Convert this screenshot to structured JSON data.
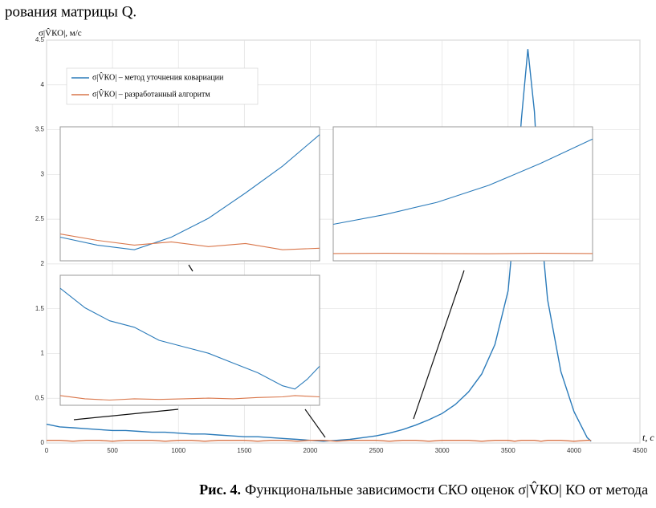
{
  "header": {
    "text": "рования матрицы Q."
  },
  "caption": {
    "label": "Рис. 4.",
    "text": "Функциональные зависимости СКО оценок σ|V̂КО| КО от метода"
  },
  "chart_data": [
    {
      "type": "line",
      "ylabel": "σ|V̂КО|, м/с",
      "xlabel": "t, с",
      "x": [
        0,
        100,
        200,
        300,
        400,
        500,
        600,
        700,
        800,
        900,
        1000,
        1100,
        1200,
        1300,
        1400,
        1500,
        1600,
        1700,
        1800,
        1900,
        2000,
        2100,
        2200,
        2300,
        2400,
        2500,
        2600,
        2700,
        2800,
        2900,
        3000,
        3100,
        3200,
        3300,
        3400,
        3500,
        3550,
        3600,
        3650,
        3700,
        3750,
        3800,
        3900,
        4000,
        4100,
        4130
      ],
      "series": [
        {
          "name": "σ|V̂КО| – метод уточнения ковариации",
          "color": "#2b7bba",
          "values": [
            0.21,
            0.18,
            0.17,
            0.16,
            0.15,
            0.14,
            0.14,
            0.13,
            0.12,
            0.12,
            0.11,
            0.1,
            0.1,
            0.09,
            0.08,
            0.07,
            0.07,
            0.06,
            0.05,
            0.04,
            0.03,
            0.02,
            0.03,
            0.04,
            0.06,
            0.08,
            0.11,
            0.15,
            0.2,
            0.26,
            0.33,
            0.43,
            0.57,
            0.77,
            1.1,
            1.7,
            2.5,
            3.6,
            4.4,
            3.7,
            2.4,
            1.6,
            0.8,
            0.35,
            0.06,
            0.02
          ]
        },
        {
          "name": "σ|V̂КО| – разработанный алгоритм",
          "color": "#d9764a",
          "values": [
            0.03,
            0.03,
            0.02,
            0.03,
            0.03,
            0.02,
            0.03,
            0.03,
            0.03,
            0.02,
            0.03,
            0.03,
            0.02,
            0.03,
            0.03,
            0.03,
            0.02,
            0.03,
            0.03,
            0.02,
            0.03,
            0.03,
            0.02,
            0.03,
            0.03,
            0.03,
            0.02,
            0.03,
            0.03,
            0.02,
            0.03,
            0.03,
            0.03,
            0.02,
            0.03,
            0.03,
            0.02,
            0.03,
            0.03,
            0.03,
            0.02,
            0.03,
            0.03,
            0.02,
            0.03,
            0.03
          ]
        }
      ],
      "xlim": [
        0,
        4500
      ],
      "ylim": [
        0,
        4.5
      ],
      "xticks": [
        0,
        500,
        1000,
        1500,
        2000,
        2500,
        3000,
        3500,
        4000,
        4500
      ],
      "yticks": [
        0,
        0.5,
        1,
        1.5,
        2,
        2.5,
        3,
        3.5,
        4,
        4.5
      ],
      "grid": true,
      "legend": "upper left"
    },
    {
      "type": "line",
      "x": [
        2000,
        2100,
        2200,
        2300,
        2400,
        2500,
        2600,
        2700
      ],
      "series": [
        {
          "color": "#2b7bba",
          "values": [
            0.03,
            0.025,
            0.022,
            0.03,
            0.042,
            0.058,
            0.075,
            0.095
          ]
        },
        {
          "color": "#d9764a",
          "values": [
            0.032,
            0.028,
            0.025,
            0.027,
            0.024,
            0.026,
            0.022,
            0.023
          ]
        }
      ],
      "xlim": [
        2000,
        2700
      ],
      "ylim": [
        0.015,
        0.1
      ]
    },
    {
      "type": "line",
      "x": [
        2700,
        2800,
        2900,
        3000,
        3100,
        3200
      ],
      "series": [
        {
          "color": "#2b7bba",
          "values": [
            0.15,
            0.19,
            0.24,
            0.31,
            0.4,
            0.5
          ]
        },
        {
          "color": "#d9764a",
          "values": [
            0.03,
            0.031,
            0.03,
            0.029,
            0.031,
            0.03
          ]
        }
      ],
      "xlim": [
        2700,
        3200
      ],
      "ylim": [
        0,
        0.55
      ]
    },
    {
      "type": "line",
      "x": [
        0,
        200,
        400,
        600,
        800,
        1000,
        1200,
        1400,
        1600,
        1800,
        1900,
        2000,
        2100
      ],
      "series": [
        {
          "color": "#2b7bba",
          "values": [
            0.2,
            0.17,
            0.15,
            0.14,
            0.12,
            0.11,
            0.1,
            0.085,
            0.07,
            0.05,
            0.045,
            0.06,
            0.08
          ]
        },
        {
          "color": "#d9764a",
          "values": [
            0.035,
            0.03,
            0.028,
            0.03,
            0.029,
            0.03,
            0.031,
            0.03,
            0.032,
            0.033,
            0.035,
            0.034,
            0.033
          ]
        }
      ],
      "xlim": [
        0,
        2100
      ],
      "ylim": [
        0.02,
        0.22
      ]
    }
  ]
}
